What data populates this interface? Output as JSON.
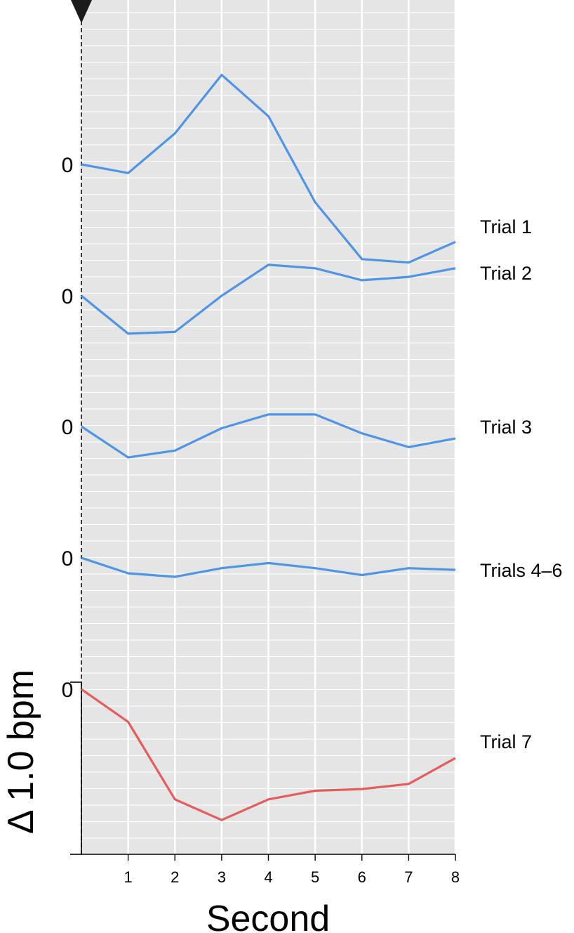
{
  "chart_data": {
    "type": "line",
    "xlabel": "Second",
    "ylabel": "Δ 1.0 bpm",
    "x": [
      0,
      1,
      2,
      3,
      4,
      5,
      6,
      7,
      8
    ],
    "x_tick_labels": [
      "1",
      "2",
      "3",
      "4",
      "5",
      "6",
      "7",
      "8"
    ],
    "xlim": [
      0,
      8
    ],
    "scale_bar_bpm": 1.0,
    "grid": true,
    "background": "#e5e5e5",
    "onset_marker": "triangle at second 0",
    "offset_zero_label": "0",
    "series": [
      {
        "name": "Trial 1",
        "color": "#5094e6",
        "values": [
          0.0,
          -0.05,
          0.18,
          0.52,
          0.28,
          -0.22,
          -0.55,
          -0.57,
          -0.45
        ]
      },
      {
        "name": "Trial 2",
        "color": "#5094e6",
        "values": [
          0.0,
          -0.22,
          -0.21,
          0.0,
          0.18,
          0.16,
          0.09,
          0.11,
          0.16
        ]
      },
      {
        "name": "Trial 3",
        "color": "#5094e6",
        "values": [
          0.0,
          -0.18,
          -0.14,
          -0.01,
          0.07,
          0.07,
          -0.04,
          -0.12,
          -0.07
        ]
      },
      {
        "name": "Trials 4–6",
        "color": "#5094e6",
        "values": [
          0.0,
          -0.09,
          -0.11,
          -0.06,
          -0.03,
          -0.06,
          -0.1,
          -0.06,
          -0.07
        ]
      },
      {
        "name": "Trial 7",
        "color": "#e65c5c",
        "values": [
          0.0,
          -0.19,
          -0.64,
          -0.76,
          -0.64,
          -0.59,
          -0.58,
          -0.55,
          -0.4
        ]
      }
    ]
  }
}
